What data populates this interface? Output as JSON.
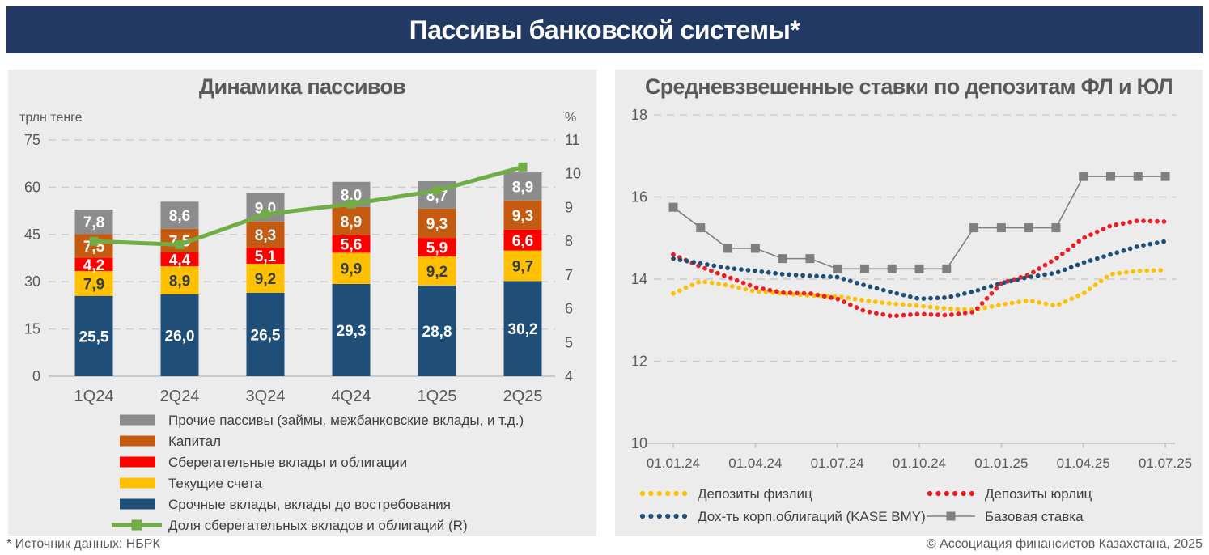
{
  "page": {
    "title": "Пассивы банковской системы*",
    "footer_left": "* Источник данных: НБРК",
    "footer_right": "© Ассоциация финансистов Казахстана, 2025",
    "titlebar_color": "#223A63",
    "panel_color": "#ECECEC",
    "text_color": "#595959"
  },
  "chart_data": [
    {
      "type": "bar",
      "stacked": true,
      "title": "Динамика пассивов",
      "left_axis": {
        "unit": "трлн тенге",
        "ticks": [
          0,
          15,
          30,
          45,
          60,
          75
        ],
        "range": [
          0,
          75
        ]
      },
      "right_axis": {
        "unit": "%",
        "ticks": [
          4,
          5,
          6,
          7,
          8,
          9,
          10,
          11
        ],
        "range": [
          4,
          11
        ]
      },
      "grid": "dashed-horizontal",
      "categories": [
        "1Q24",
        "2Q24",
        "3Q24",
        "4Q24",
        "1Q25",
        "2Q25"
      ],
      "series": [
        {
          "name": "Срочные вклады, вклады до востребования",
          "color": "#1F4E79",
          "label_color": "#FFFFFF",
          "values": [
            25.5,
            26.0,
            26.5,
            29.3,
            28.8,
            30.2
          ]
        },
        {
          "name": "Текущие счета",
          "color": "#FFC000",
          "label_color": "#333F50",
          "values": [
            7.9,
            8.9,
            9.2,
            9.9,
            9.2,
            9.7
          ]
        },
        {
          "name": "Сберегательные вклады и облигации",
          "color": "#FF0000",
          "label_color": "#FFFFFF",
          "values": [
            4.2,
            4.4,
            5.1,
            5.6,
            5.9,
            6.6
          ]
        },
        {
          "name": "Капитал",
          "color": "#C55A11",
          "label_color": "#FFFFFF",
          "values": [
            7.5,
            7.5,
            8.3,
            8.9,
            9.3,
            9.3
          ]
        },
        {
          "name": "Прочие пассивы (займы, межбанковские вклады, и т.д.)",
          "color": "#8C8C8C",
          "label_color": "#FFFFFF",
          "values": [
            7.8,
            8.6,
            9.0,
            8.0,
            8.7,
            8.9
          ]
        }
      ],
      "line_series": {
        "name": "Доля сберегательных вкладов и облигаций (R)",
        "color": "#70AD47",
        "axis": "right",
        "values": [
          8.0,
          7.9,
          8.8,
          9.1,
          9.5,
          10.2
        ]
      },
      "legend_position": "bottom-left"
    },
    {
      "type": "line",
      "title": "Средневзвешенные ставки по депозитам ФЛ и ЮЛ",
      "y_axis": {
        "ticks": [
          10,
          12,
          14,
          16,
          18
        ],
        "range": [
          10,
          18
        ]
      },
      "x_tick_labels": [
        "01.01.24",
        "01.04.24",
        "01.07.24",
        "01.10.24",
        "01.01.25",
        "01.04.25",
        "01.07.25"
      ],
      "points_per_series": 19,
      "x_interval": "monthly",
      "grid": "dashed-horizontal",
      "series": [
        {
          "name": "Депозиты физлиц",
          "color": "#FFC000",
          "style": "dotted",
          "values": [
            13.65,
            13.95,
            13.85,
            13.7,
            13.65,
            13.6,
            13.58,
            13.48,
            13.4,
            13.35,
            13.28,
            13.25,
            13.38,
            13.48,
            13.35,
            13.65,
            14.12,
            14.2,
            14.22
          ]
        },
        {
          "name": "Депозиты юрлиц",
          "color": "#ED1C24",
          "style": "dotted",
          "values": [
            14.6,
            14.3,
            14.05,
            13.8,
            13.67,
            13.65,
            13.52,
            13.22,
            13.1,
            13.15,
            13.12,
            13.2,
            13.9,
            14.1,
            14.5,
            15.0,
            15.3,
            15.42,
            15.4
          ]
        },
        {
          "name": "Дох-ть корп.облигаций (KASE BMY)",
          "color": "#1F4E79",
          "style": "dotted",
          "values": [
            14.5,
            14.38,
            14.27,
            14.2,
            14.12,
            14.08,
            14.05,
            13.85,
            13.68,
            13.52,
            13.55,
            13.7,
            13.9,
            14.05,
            14.15,
            14.4,
            14.6,
            14.8,
            14.92
          ]
        },
        {
          "name": "Базовая ставка",
          "color": "#7F7F7F",
          "style": "line-square",
          "values": [
            15.75,
            15.25,
            14.75,
            14.75,
            14.5,
            14.5,
            14.25,
            14.25,
            14.25,
            14.25,
            14.25,
            15.25,
            15.25,
            15.25,
            15.25,
            16.5,
            16.5,
            16.5,
            16.5
          ]
        }
      ],
      "legend_position": "bottom"
    }
  ]
}
